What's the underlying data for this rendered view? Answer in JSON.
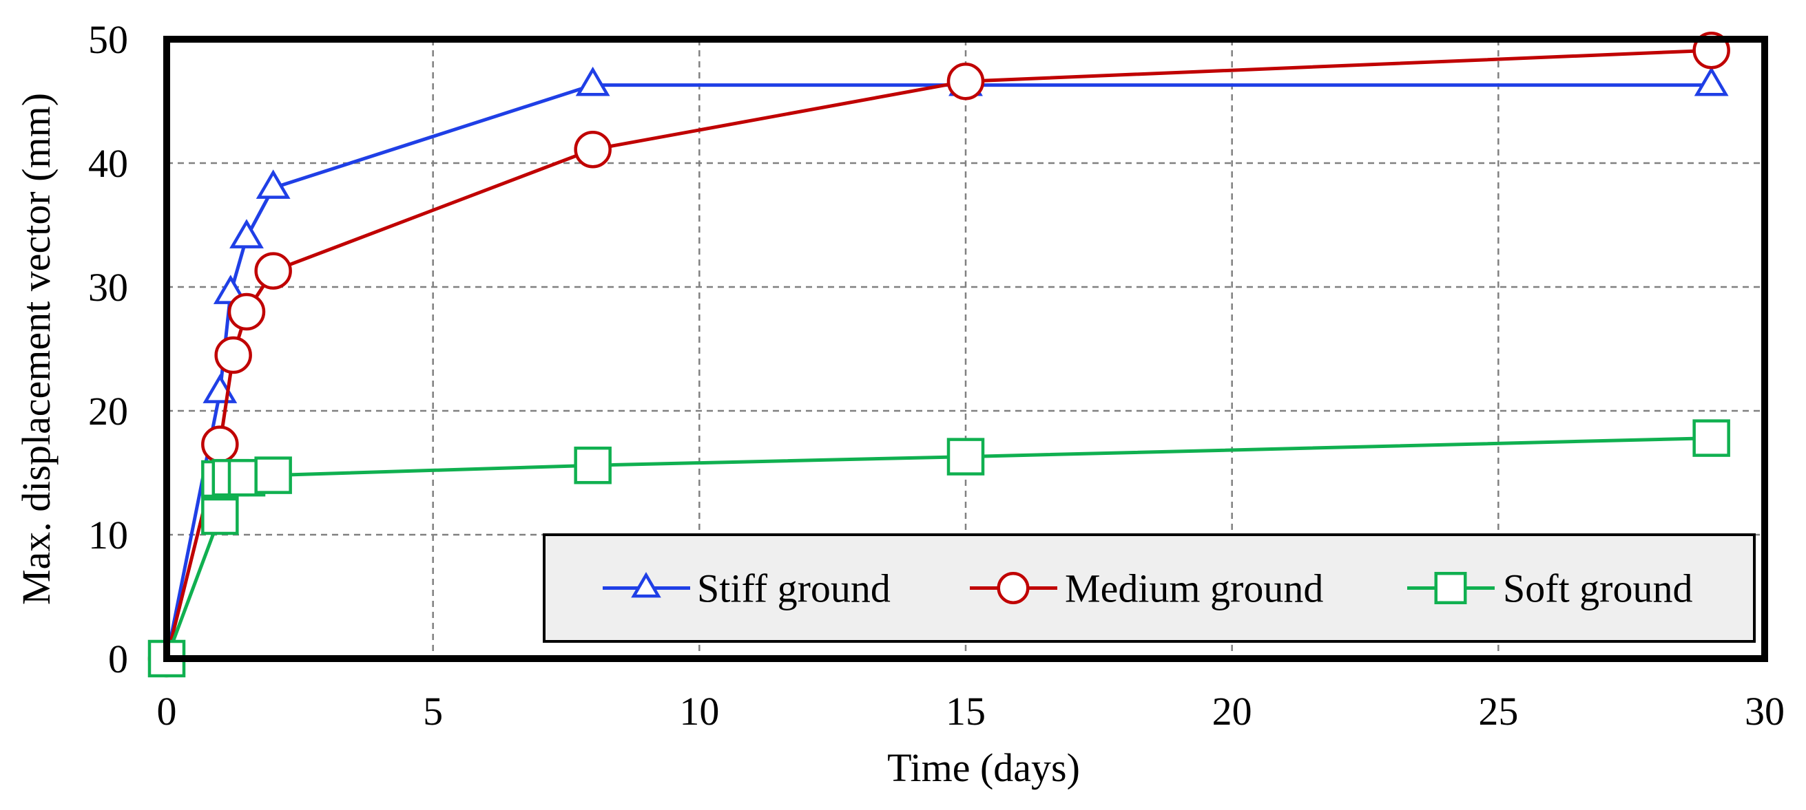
{
  "chart_data": {
    "type": "line",
    "title": "",
    "xlabel": "Time (days)",
    "ylabel": "Max. displacement vector (mm)",
    "xlim": [
      0,
      30
    ],
    "ylim": [
      0,
      50
    ],
    "xticks": [
      0,
      5,
      10,
      15,
      20,
      25,
      30
    ],
    "yticks": [
      0,
      10,
      20,
      30,
      40,
      50
    ],
    "grid": true,
    "legend_position": "bottom-right",
    "series": [
      {
        "name": "Stiff ground",
        "color": "#1f3fe6",
        "marker": "triangle",
        "points": [
          {
            "x": 0,
            "y": 0
          },
          {
            "x": 1,
            "y": 21.5
          },
          {
            "x": 1.2,
            "y": 29.5
          },
          {
            "x": 1.5,
            "y": 34.0
          },
          {
            "x": 2,
            "y": 38.0
          },
          {
            "x": 8,
            "y": 46.3
          },
          {
            "x": 15,
            "y": 46.3
          },
          {
            "x": 29,
            "y": 46.3
          }
        ]
      },
      {
        "name": "Medium ground",
        "color": "#c00000",
        "marker": "circle",
        "points": [
          {
            "x": 0,
            "y": 0
          },
          {
            "x": 1,
            "y": 17.3
          },
          {
            "x": 1.25,
            "y": 24.5
          },
          {
            "x": 1.5,
            "y": 28.0
          },
          {
            "x": 2,
            "y": 31.3
          },
          {
            "x": 8,
            "y": 41.1
          },
          {
            "x": 15,
            "y": 46.6
          },
          {
            "x": 29,
            "y": 49.1
          }
        ]
      },
      {
        "name": "Soft ground",
        "color": "#10b050",
        "marker": "square",
        "points": [
          {
            "x": 0,
            "y": 0
          },
          {
            "x": 1,
            "y": 11.5
          },
          {
            "x": 1,
            "y": 14.5
          },
          {
            "x": 1.2,
            "y": 14.6
          },
          {
            "x": 1.5,
            "y": 14.6
          },
          {
            "x": 2,
            "y": 14.8
          },
          {
            "x": 8,
            "y": 15.6
          },
          {
            "x": 15,
            "y": 16.3
          },
          {
            "x": 29,
            "y": 17.8
          }
        ]
      }
    ]
  }
}
